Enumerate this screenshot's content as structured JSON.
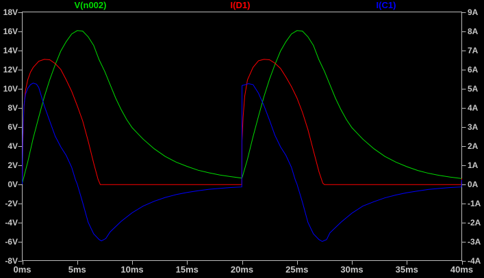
{
  "window": {
    "background": "#000000",
    "text_color": "#c8c8c8",
    "axis_color": "#bdbdbd"
  },
  "legend": {
    "items": [
      {
        "label": "V(n002)",
        "color": "#00dc00"
      },
      {
        "label": "I(D1)",
        "color": "#ff0000"
      },
      {
        "label": "I(C1)",
        "color": "#0000ff"
      }
    ]
  },
  "chart_data": {
    "type": "line",
    "title": "",
    "grid": false,
    "legend_position": "top",
    "x_axis": {
      "min": 0,
      "max": 40,
      "step": 5,
      "unit": "ms",
      "ticks": [
        {
          "v": 0,
          "label": "0ms"
        },
        {
          "v": 5,
          "label": "5ms"
        },
        {
          "v": 10,
          "label": "10ms"
        },
        {
          "v": 15,
          "label": "15ms"
        },
        {
          "v": 20,
          "label": "20ms"
        },
        {
          "v": 25,
          "label": "25ms"
        },
        {
          "v": 30,
          "label": "30ms"
        },
        {
          "v": 35,
          "label": "35ms"
        },
        {
          "v": 40,
          "label": "40ms"
        }
      ]
    },
    "y_left": {
      "min": -8,
      "max": 18,
      "step": 2,
      "unit": "V",
      "ticks": [
        {
          "v": 18,
          "label": "18V"
        },
        {
          "v": 16,
          "label": "16V"
        },
        {
          "v": 14,
          "label": "14V"
        },
        {
          "v": 12,
          "label": "12V"
        },
        {
          "v": 10,
          "label": "10V"
        },
        {
          "v": 8,
          "label": "8V"
        },
        {
          "v": 6,
          "label": "6V"
        },
        {
          "v": 4,
          "label": "4V"
        },
        {
          "v": 2,
          "label": "2V"
        },
        {
          "v": 0,
          "label": "0V"
        },
        {
          "v": -2,
          "label": "-2V"
        },
        {
          "v": -4,
          "label": "-4V"
        },
        {
          "v": -6,
          "label": "-6V"
        },
        {
          "v": -8,
          "label": "-8V"
        }
      ]
    },
    "y_right": {
      "min": -4,
      "max": 9,
      "step": 1,
      "unit": "A",
      "ticks": [
        {
          "v": 9,
          "label": "9A"
        },
        {
          "v": 8,
          "label": "8A"
        },
        {
          "v": 7,
          "label": "7A"
        },
        {
          "v": 6,
          "label": "6A"
        },
        {
          "v": 5,
          "label": "5A"
        },
        {
          "v": 4,
          "label": "4A"
        },
        {
          "v": 3,
          "label": "3A"
        },
        {
          "v": 2,
          "label": "2A"
        },
        {
          "v": 1,
          "label": "1A"
        },
        {
          "v": 0,
          "label": "0A"
        },
        {
          "v": -1,
          "label": "-1A"
        },
        {
          "v": -2,
          "label": "-2A"
        },
        {
          "v": -3,
          "label": "-3A"
        },
        {
          "v": -4,
          "label": "-4A"
        }
      ]
    },
    "series": [
      {
        "name": "V(n002)",
        "color": "#00dc00",
        "axis": "left",
        "points": [
          [
            0,
            0.1
          ],
          [
            0.5,
            2.3
          ],
          [
            1,
            4.8
          ],
          [
            1.5,
            7.0
          ],
          [
            2,
            9.1
          ],
          [
            2.5,
            10.9
          ],
          [
            3,
            12.5
          ],
          [
            3.5,
            13.9
          ],
          [
            4,
            14.9
          ],
          [
            4.5,
            15.7
          ],
          [
            5,
            16.05
          ],
          [
            5.5,
            16.0
          ],
          [
            6,
            15.4
          ],
          [
            6.5,
            14.5
          ],
          [
            7,
            13.0
          ],
          [
            7.5,
            11.8
          ],
          [
            8,
            10.4
          ],
          [
            8.5,
            9.0
          ],
          [
            9,
            7.8
          ],
          [
            9.5,
            6.75
          ],
          [
            10,
            5.9
          ],
          [
            10.5,
            5.3
          ],
          [
            11,
            4.7
          ],
          [
            12,
            3.7
          ],
          [
            13,
            2.9
          ],
          [
            14,
            2.3
          ],
          [
            15,
            1.85
          ],
          [
            16,
            1.45
          ],
          [
            17,
            1.18
          ],
          [
            18,
            0.95
          ],
          [
            19,
            0.78
          ],
          [
            20,
            0.62
          ],
          [
            20.5,
            2.6
          ],
          [
            21,
            4.95
          ],
          [
            21.5,
            7.1
          ],
          [
            22,
            9.15
          ],
          [
            22.5,
            10.95
          ],
          [
            23,
            12.5
          ],
          [
            23.5,
            13.9
          ],
          [
            24,
            14.9
          ],
          [
            24.5,
            15.7
          ],
          [
            25,
            16.05
          ],
          [
            25.5,
            16.0
          ],
          [
            26,
            15.4
          ],
          [
            26.5,
            14.5
          ],
          [
            27,
            13.0
          ],
          [
            27.5,
            11.8
          ],
          [
            28,
            10.4
          ],
          [
            28.5,
            9.0
          ],
          [
            29,
            7.8
          ],
          [
            29.5,
            6.75
          ],
          [
            30,
            5.9
          ],
          [
            30.5,
            5.3
          ],
          [
            31,
            4.7
          ],
          [
            32,
            3.7
          ],
          [
            33,
            2.9
          ],
          [
            34,
            2.3
          ],
          [
            35,
            1.82
          ],
          [
            36,
            1.42
          ],
          [
            37,
            1.12
          ],
          [
            38,
            0.9
          ],
          [
            39,
            0.72
          ],
          [
            40,
            0.58
          ]
        ]
      },
      {
        "name": "I(D1)",
        "color": "#ff0000",
        "axis": "right",
        "points": [
          [
            0,
            0
          ],
          [
            0.05,
            2.0
          ],
          [
            0.15,
            4.0
          ],
          [
            0.3,
            4.9
          ],
          [
            0.5,
            5.45
          ],
          [
            0.75,
            5.85
          ],
          [
            1,
            6.1
          ],
          [
            1.5,
            6.42
          ],
          [
            2,
            6.52
          ],
          [
            2.5,
            6.5
          ],
          [
            3,
            6.3
          ],
          [
            3.5,
            6.0
          ],
          [
            4,
            5.45
          ],
          [
            4.5,
            4.85
          ],
          [
            5,
            4.1
          ],
          [
            5.5,
            3.3
          ],
          [
            6,
            2.25
          ],
          [
            6.5,
            1.1
          ],
          [
            6.9,
            0.25
          ],
          [
            7.1,
            -0.03
          ],
          [
            19.98,
            -0.03
          ],
          [
            20,
            2.25
          ],
          [
            20.1,
            3.5
          ],
          [
            20.25,
            4.6
          ],
          [
            20.5,
            5.45
          ],
          [
            21,
            6.1
          ],
          [
            21.5,
            6.45
          ],
          [
            22,
            6.52
          ],
          [
            22.5,
            6.5
          ],
          [
            23,
            6.32
          ],
          [
            23.5,
            6.05
          ],
          [
            24,
            5.6
          ],
          [
            24.5,
            5.1
          ],
          [
            25,
            4.5
          ],
          [
            25.5,
            3.75
          ],
          [
            26,
            2.85
          ],
          [
            26.5,
            1.75
          ],
          [
            27,
            0.65
          ],
          [
            27.35,
            0.05
          ],
          [
            27.5,
            -0.03
          ],
          [
            39.97,
            -0.03
          ],
          [
            40,
            0.3
          ]
        ]
      },
      {
        "name": "I(C1)",
        "color": "#0000ff",
        "axis": "right",
        "points": [
          [
            0,
            0
          ],
          [
            0.05,
            2.5
          ],
          [
            0.15,
            4.1
          ],
          [
            0.3,
            4.7
          ],
          [
            0.5,
            5.0
          ],
          [
            0.75,
            5.2
          ],
          [
            1,
            5.28
          ],
          [
            1.3,
            5.22
          ],
          [
            1.5,
            5.05
          ],
          [
            2,
            4.1
          ],
          [
            2.5,
            3.3
          ],
          [
            3,
            2.5
          ],
          [
            3.5,
            1.95
          ],
          [
            4,
            1.5
          ],
          [
            4.5,
            0.88
          ],
          [
            4.85,
            0.22
          ],
          [
            5,
            0
          ],
          [
            5.5,
            -0.97
          ],
          [
            6,
            -2.0
          ],
          [
            6.5,
            -2.6
          ],
          [
            7,
            -2.9
          ],
          [
            7.2,
            -2.97
          ],
          [
            7.6,
            -2.85
          ],
          [
            8,
            -2.5
          ],
          [
            9,
            -1.95
          ],
          [
            10,
            -1.5
          ],
          [
            11,
            -1.15
          ],
          [
            12,
            -0.9
          ],
          [
            13,
            -0.7
          ],
          [
            14,
            -0.55
          ],
          [
            15,
            -0.44
          ],
          [
            16,
            -0.35
          ],
          [
            17,
            -0.27
          ],
          [
            18,
            -0.22
          ],
          [
            19,
            -0.18
          ],
          [
            19.98,
            -0.15
          ],
          [
            20,
            5.15
          ],
          [
            20.6,
            5.25
          ],
          [
            21,
            5.2
          ],
          [
            21.5,
            4.75
          ],
          [
            22,
            4.1
          ],
          [
            22.5,
            3.35
          ],
          [
            23,
            2.55
          ],
          [
            23.5,
            1.95
          ],
          [
            24,
            1.5
          ],
          [
            24.5,
            0.88
          ],
          [
            24.85,
            0.22
          ],
          [
            25,
            0
          ],
          [
            25.5,
            -0.95
          ],
          [
            26,
            -2.0
          ],
          [
            26.5,
            -2.6
          ],
          [
            27,
            -2.9
          ],
          [
            27.3,
            -3.0
          ],
          [
            27.7,
            -2.9
          ],
          [
            28,
            -2.55
          ],
          [
            29,
            -2.0
          ],
          [
            30,
            -1.52
          ],
          [
            31,
            -1.15
          ],
          [
            32,
            -0.92
          ],
          [
            33,
            -0.72
          ],
          [
            34,
            -0.57
          ],
          [
            35,
            -0.45
          ],
          [
            36,
            -0.36
          ],
          [
            37,
            -0.28
          ],
          [
            38,
            -0.22
          ],
          [
            39,
            -0.18
          ],
          [
            39.97,
            -0.15
          ],
          [
            40,
            0.22
          ]
        ]
      }
    ]
  }
}
